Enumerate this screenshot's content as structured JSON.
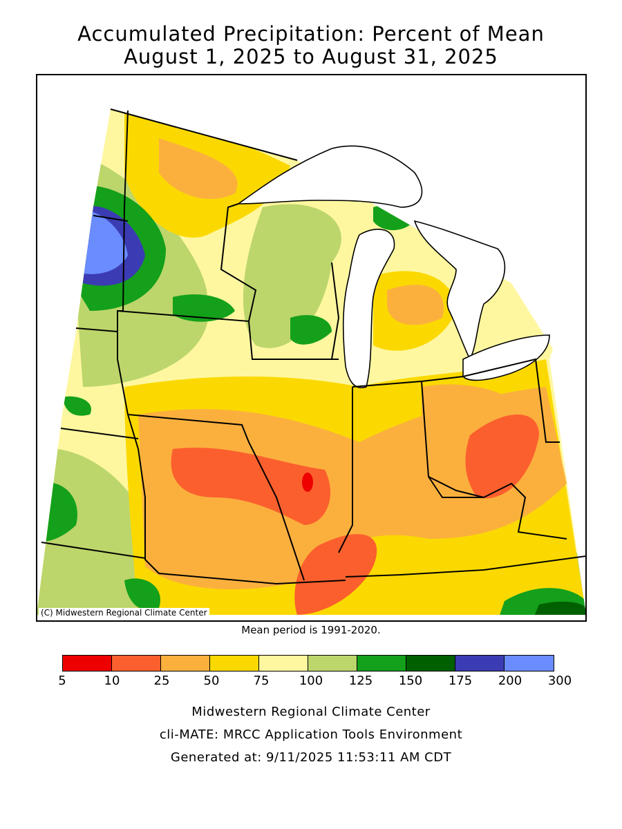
{
  "title_line1": "Accumulated Precipitation: Percent of Mean",
  "title_line2": "August 1, 2025 to August 31, 2025",
  "credit": "(C) Midwestern Regional Climate Center",
  "mean_note": "Mean period is 1991-2020.",
  "legend": {
    "ticks": [
      "5",
      "10",
      "25",
      "50",
      "75",
      "100",
      "125",
      "150",
      "175",
      "200",
      "300"
    ],
    "colors": [
      "#ee0000",
      "#fb5f2d",
      "#fbb03e",
      "#fbd900",
      "#fff7a0",
      "#bcd66b",
      "#14a01b",
      "#006000",
      "#3b3bb3",
      "#6a8cff"
    ]
  },
  "footer": {
    "line1": "Midwestern Regional Climate Center",
    "line2": "cli-MATE: MRCC Application Tools Environment",
    "line3": "Generated at: 9/11/2025 11:53:11 AM CDT"
  }
}
